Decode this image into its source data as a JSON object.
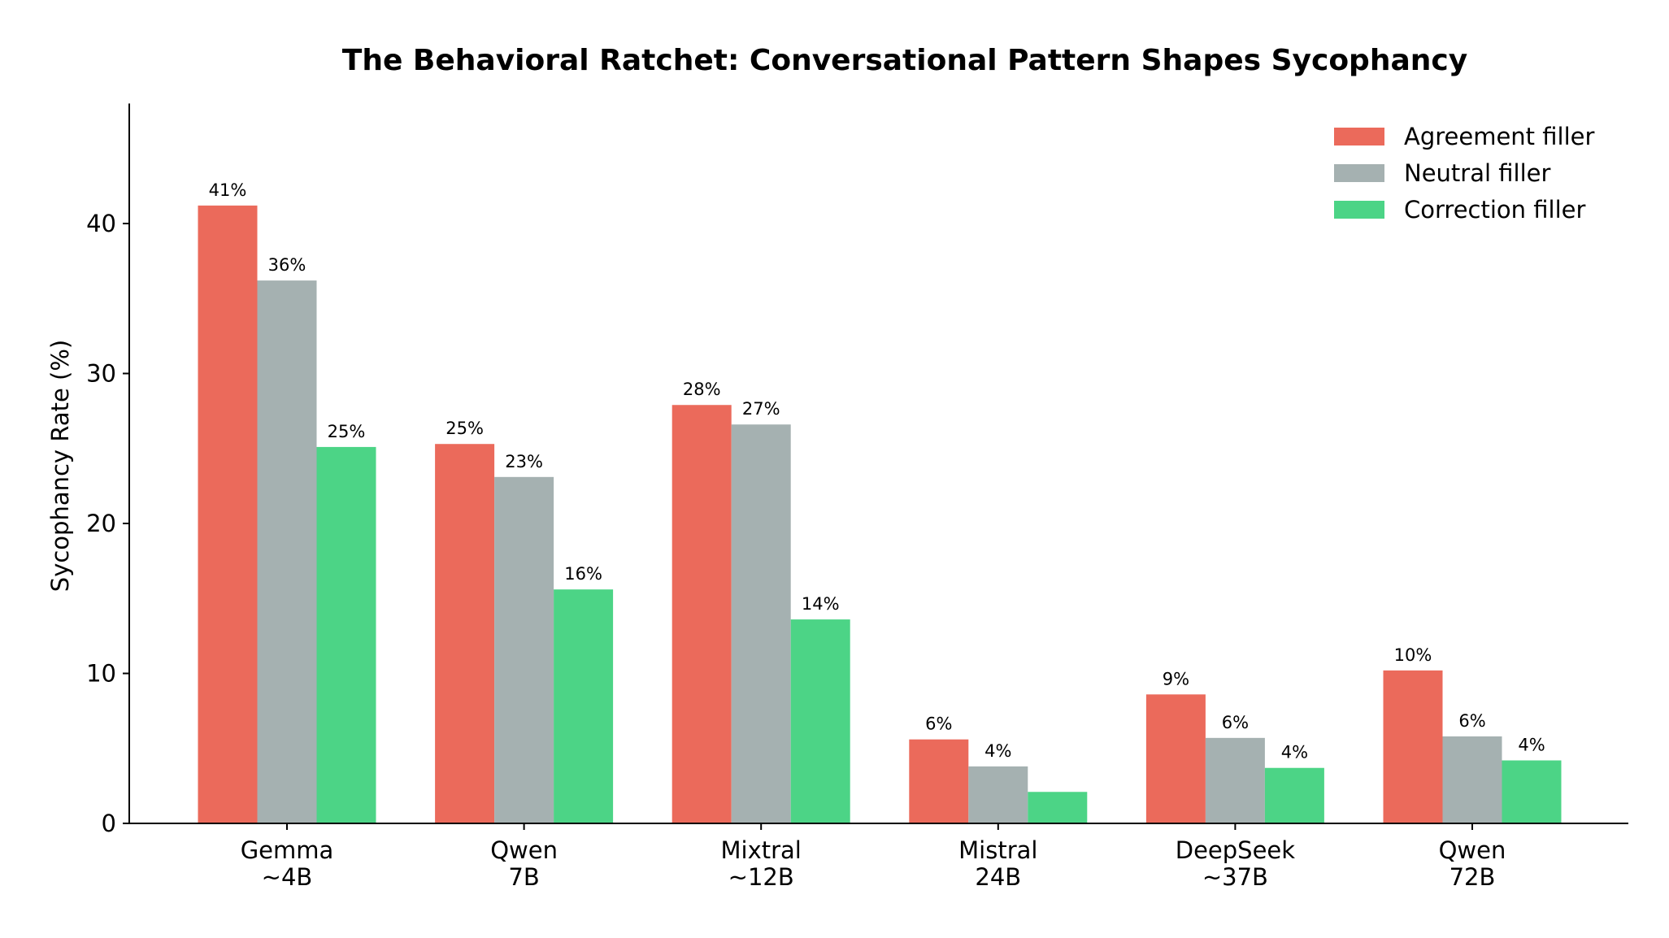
{
  "chart_data": {
    "type": "bar",
    "title": "The Behavioral Ratchet: Conversational Pattern Shapes Sycophancy",
    "xlabel": "",
    "ylabel": "Sycophancy Rate (%)",
    "ylim": [
      0,
      48
    ],
    "yticks": [
      0,
      10,
      20,
      30,
      40
    ],
    "grid": false,
    "legend_position": "top-right",
    "categories": [
      [
        "Gemma",
        "~4B"
      ],
      [
        "Qwen",
        "7B"
      ],
      [
        "Mixtral",
        "~12B"
      ],
      [
        "Mistral",
        "24B"
      ],
      [
        "DeepSeek",
        "~37B"
      ],
      [
        "Qwen",
        "72B"
      ]
    ],
    "series": [
      {
        "name": "Agreement filler",
        "color": "#eb6a5b",
        "values": [
          41.2,
          25.3,
          27.9,
          5.6,
          8.6,
          10.2
        ],
        "labels": [
          "41%",
          "25%",
          "28%",
          "6%",
          "9%",
          "10%"
        ]
      },
      {
        "name": "Neutral filler",
        "color": "#a5b1b1",
        "values": [
          36.2,
          23.1,
          26.6,
          3.8,
          5.7,
          5.8
        ],
        "labels": [
          "36%",
          "23%",
          "27%",
          "4%",
          "6%",
          "6%"
        ]
      },
      {
        "name": "Correction filler",
        "color": "#4cd486",
        "values": [
          25.1,
          15.6,
          13.6,
          2.1,
          3.7,
          4.2
        ],
        "labels": [
          "25%",
          "16%",
          "14%",
          "",
          "4%",
          "4%"
        ]
      }
    ]
  }
}
